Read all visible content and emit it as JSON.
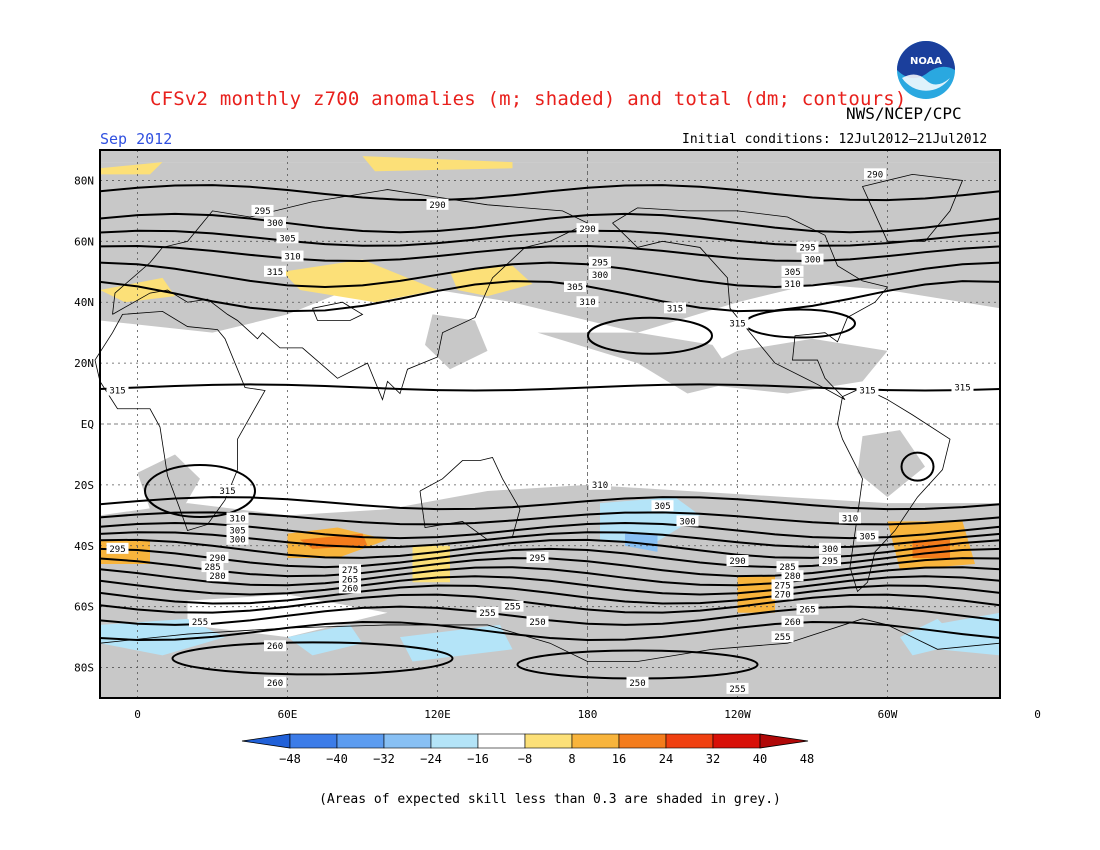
{
  "header": {
    "title": "CFSv2 monthly z700 anomalies (m; shaded) and total (dm; contours)",
    "agency": "NWS/NCEP/CPC",
    "valid_month": "Sep 2012",
    "initial_conditions": "Initial conditions: 12Jul2012–21Jul2012",
    "logo_text": "NOAA"
  },
  "map": {
    "lat_labels": [
      "80N",
      "60N",
      "40N",
      "20N",
      "EQ",
      "20S",
      "40S",
      "60S",
      "80S"
    ],
    "lon_labels": [
      "0",
      "60E",
      "120E",
      "180",
      "120W",
      "60W",
      "0"
    ],
    "contour_labels": [
      "315",
      "310",
      "305",
      "300",
      "295",
      "290",
      "285",
      "280",
      "275",
      "270",
      "265",
      "260",
      "255",
      "250"
    ],
    "colors": {
      "skill_grey": "#c8c8c8",
      "land_outline": "#000000",
      "contour": "#000000"
    }
  },
  "colorbar": {
    "labels": [
      "−48",
      "−40",
      "−32",
      "−24",
      "−16",
      "−8",
      "8",
      "16",
      "24",
      "32",
      "40",
      "48"
    ],
    "colors": [
      "#2060d8",
      "#3c7ce8",
      "#5c9cf0",
      "#88c0f4",
      "#b4e4f8",
      "#ffffff",
      "#fce078",
      "#f8b43c",
      "#f47c1c",
      "#f04010",
      "#d81008",
      "#b00808"
    ]
  },
  "footer": {
    "note": "(Areas of expected skill less than 0.3 are shaded in grey.)"
  }
}
